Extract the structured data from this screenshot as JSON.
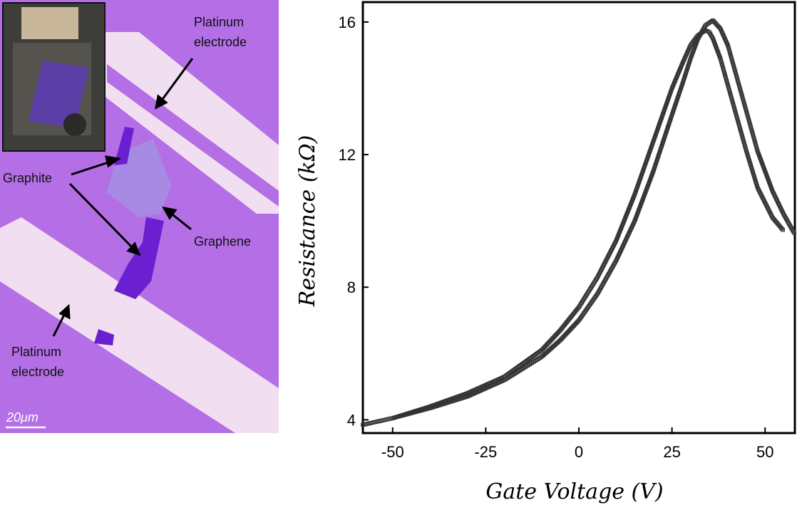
{
  "micrograph": {
    "labels": {
      "platinum_top": [
        "Platinum",
        "electrode"
      ],
      "graphite": "Graphite",
      "graphene": "Graphene",
      "platinum_bottom": [
        "Platinum",
        "electrode"
      ]
    },
    "scale_bar": "20μm",
    "colors": {
      "substrate": "#b46fe6",
      "electrode": "#f1dff1",
      "graphite": "#6a1fd0",
      "graphene": "#a58fe2"
    }
  },
  "chart_data": {
    "type": "scatter",
    "xlabel": "Gate Voltage (V)",
    "ylabel": "Resistance (kΩ)",
    "xlim": [
      -58,
      58
    ],
    "ylim": [
      3.6,
      16.6
    ],
    "xticks": [
      -50,
      -25,
      0,
      25,
      50
    ],
    "yticks": [
      4,
      8,
      12,
      16
    ],
    "x_tick_labels": [
      "-50",
      "-25",
      "0",
      "25",
      "50"
    ],
    "y_tick_labels": [
      "4",
      "8",
      "12",
      "16"
    ],
    "marker": "open-square",
    "marker_color": "#333333",
    "grid": false,
    "series": [
      {
        "x": [
          -58,
          -50,
          -40,
          -30,
          -20,
          -10,
          -5,
          0,
          5,
          10,
          15,
          20,
          25,
          28,
          30,
          32,
          34,
          36,
          38,
          40,
          42,
          45,
          48,
          52,
          55,
          58
        ],
        "y": [
          3.85,
          4.05,
          4.35,
          4.7,
          5.2,
          5.9,
          6.4,
          7.0,
          7.8,
          8.8,
          10.0,
          11.5,
          13.2,
          14.2,
          14.9,
          15.5,
          15.9,
          16.05,
          15.8,
          15.3,
          14.5,
          13.3,
          12.1,
          10.9,
          10.2,
          9.6
        ]
      },
      {
        "x": [
          -58,
          -50,
          -40,
          -30,
          -20,
          -10,
          -5,
          0,
          5,
          10,
          15,
          20,
          25,
          28,
          30,
          32,
          34,
          35,
          36,
          38,
          40,
          42,
          45,
          48,
          52,
          55
        ],
        "y": [
          3.85,
          4.05,
          4.4,
          4.8,
          5.3,
          6.1,
          6.7,
          7.4,
          8.3,
          9.4,
          10.8,
          12.4,
          14.0,
          14.8,
          15.3,
          15.6,
          15.75,
          15.7,
          15.5,
          14.9,
          14.1,
          13.3,
          12.1,
          11.0,
          10.1,
          9.7
        ]
      }
    ]
  }
}
